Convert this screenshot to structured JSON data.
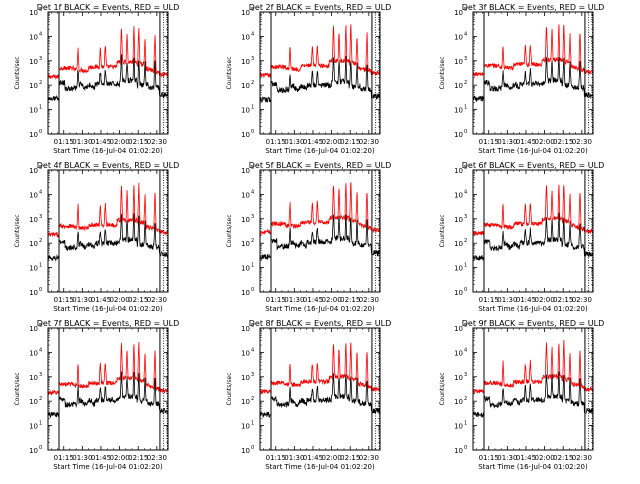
{
  "chart_data": [
    {
      "type": "line",
      "title": "Det 1f BLACK = Events, RED = ULD",
      "xlabel": "Start Time (16-Jul-04 01:02:20)",
      "ylabel": "Counts/sec"
    },
    {
      "type": "line",
      "title": "Det 2f BLACK = Events, RED = ULD",
      "xlabel": "Start Time (16-Jul-04 01:02:20)",
      "ylabel": "Counts/sec"
    },
    {
      "type": "line",
      "title": "Det 3f BLACK = Events, RED = ULD",
      "xlabel": "Start Time (16-Jul-04 01:02:20)",
      "ylabel": "Counts/sec"
    },
    {
      "type": "line",
      "title": "Det 4f BLACK = Events, RED = ULD",
      "xlabel": "Start Time (16-Jul-04 01:02:20)",
      "ylabel": "Counts/sec"
    },
    {
      "type": "line",
      "title": "Det 5f BLACK = Events, RED = ULD",
      "xlabel": "Start Time (16-Jul-04 01:02:20)",
      "ylabel": "Counts/sec"
    },
    {
      "type": "line",
      "title": "Det 6f BLACK = Events, RED = ULD",
      "xlabel": "Start Time (16-Jul-04 01:02:20)",
      "ylabel": "Counts/sec"
    },
    {
      "type": "line",
      "title": "Det 7f BLACK = Events, RED = ULD",
      "xlabel": "Start Time (16-Jul-04 01:02:20)",
      "ylabel": "Counts/sec"
    },
    {
      "type": "line",
      "title": "Det 8f BLACK = Events, RED = ULD",
      "xlabel": "Start Time (16-Jul-04 01:02:20)",
      "ylabel": "Counts/sec"
    },
    {
      "type": "line",
      "title": "Det 9f BLACK = Events, RED = ULD",
      "xlabel": "Start Time (16-Jul-04 01:02:20)",
      "ylabel": "Counts/sec"
    }
  ],
  "shared": {
    "x_ticks": [
      "01:15",
      "01:30",
      "01:45",
      "02:00",
      "02:15",
      "02:30"
    ],
    "x_tick_minutes": [
      75,
      90,
      105,
      120,
      135,
      150
    ],
    "xlim_minutes": [
      62.33,
      159
    ],
    "ylim": [
      1,
      100000
    ],
    "y_scale": "log",
    "y_ticks": [
      {
        "mant": "10",
        "exp": "0"
      },
      {
        "mant": "10",
        "exp": "1"
      },
      {
        "mant": "10",
        "exp": "2"
      },
      {
        "mant": "10",
        "exp": "3"
      },
      {
        "mant": "10",
        "exp": "4"
      },
      {
        "mant": "10",
        "exp": "5"
      }
    ],
    "data_gap_minutes": [
      {
        "from": 71,
        "to": 71.5
      },
      {
        "from": 152.5,
        "to": 153
      }
    ],
    "vertical_markers_minutes": [
      {
        "at": 71.2,
        "style": "solid"
      },
      {
        "at": 152.5,
        "style": "solid"
      },
      {
        "at": 155.5,
        "style": "dotted"
      },
      {
        "at": 158.5,
        "style": "dotted"
      }
    ],
    "series_colors": {
      "events": "#000000",
      "uld": "#ff0000"
    },
    "series_meaning": {
      "events": "BLACK = Events",
      "uld": "RED = ULD"
    }
  }
}
